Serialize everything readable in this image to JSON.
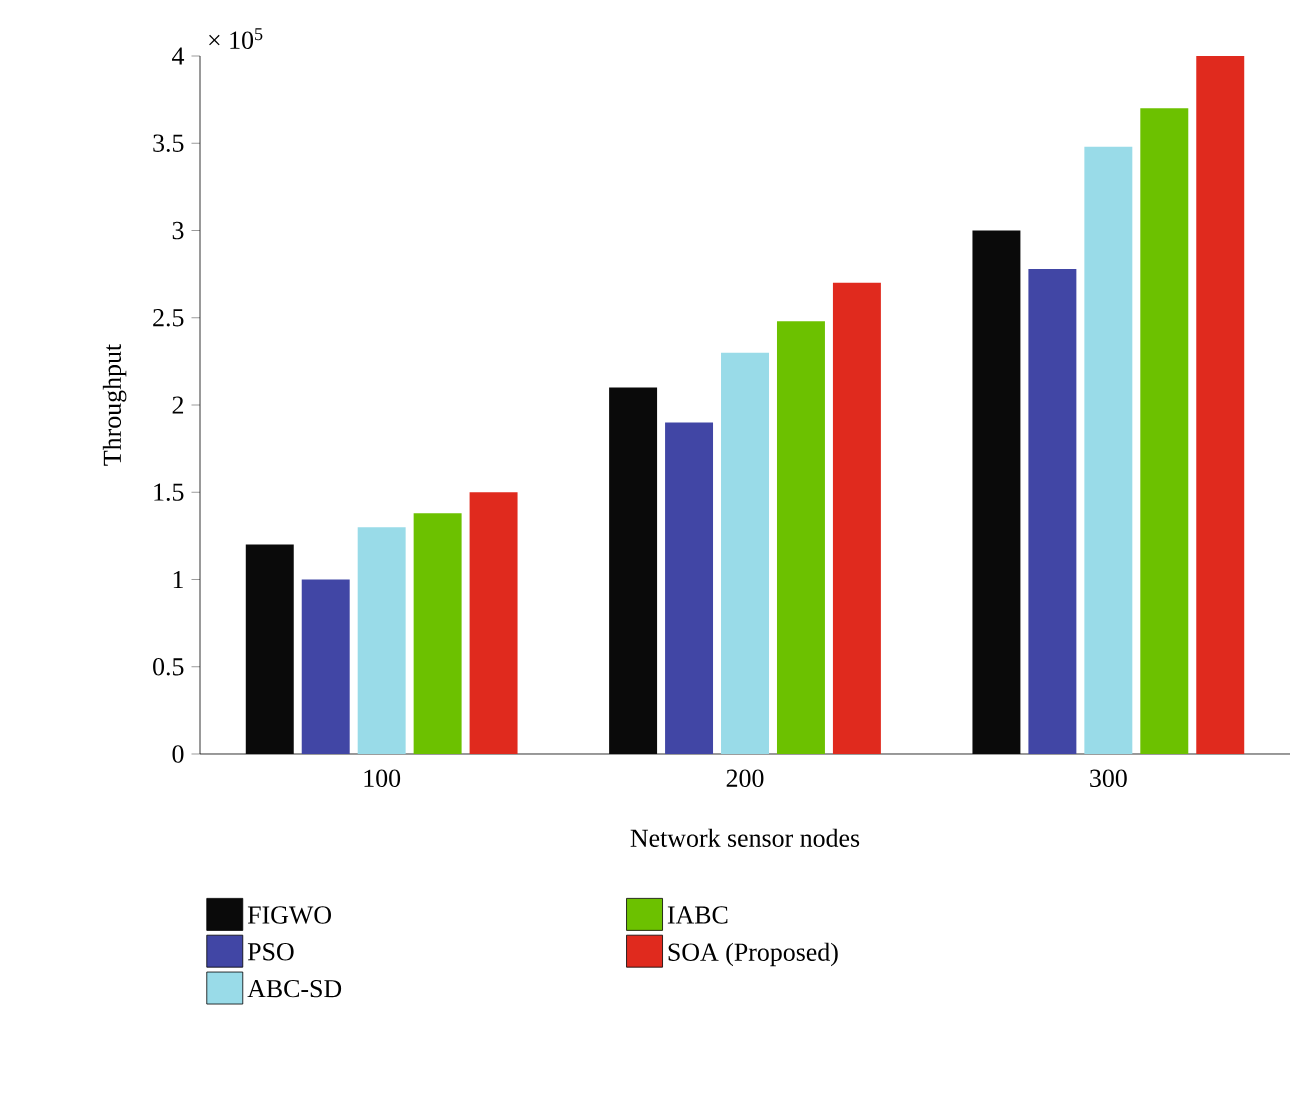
{
  "chart_data": {
    "type": "bar",
    "xlabel": "Network sensor nodes",
    "ylabel": "Throughput",
    "categories": [
      "100",
      "200",
      "300"
    ],
    "series": [
      {
        "name": "FIGWO",
        "color": "#0a0a0a",
        "values": [
          1.2,
          2.1,
          3.0
        ]
      },
      {
        "name": "PSO",
        "color": "#4146a5",
        "values": [
          1.0,
          1.9,
          2.78
        ]
      },
      {
        "name": "ABC-SD",
        "color": "#99dbe8",
        "values": [
          1.3,
          2.3,
          3.48
        ]
      },
      {
        "name": "IABC",
        "color": "#6cc100",
        "values": [
          1.38,
          2.48,
          3.7
        ]
      },
      {
        "name": "SOA (Proposed)",
        "color": "#e02a1e",
        "values": [
          1.5,
          2.7,
          4.0
        ]
      }
    ],
    "ylim": [
      0,
      4
    ],
    "yticks": [
      0,
      0.5,
      1,
      1.5,
      2,
      2.5,
      3,
      3.5,
      4
    ],
    "annotations": [
      "× 10$^{5}$"
    ],
    "legend": "bottom",
    "grid": false
  }
}
